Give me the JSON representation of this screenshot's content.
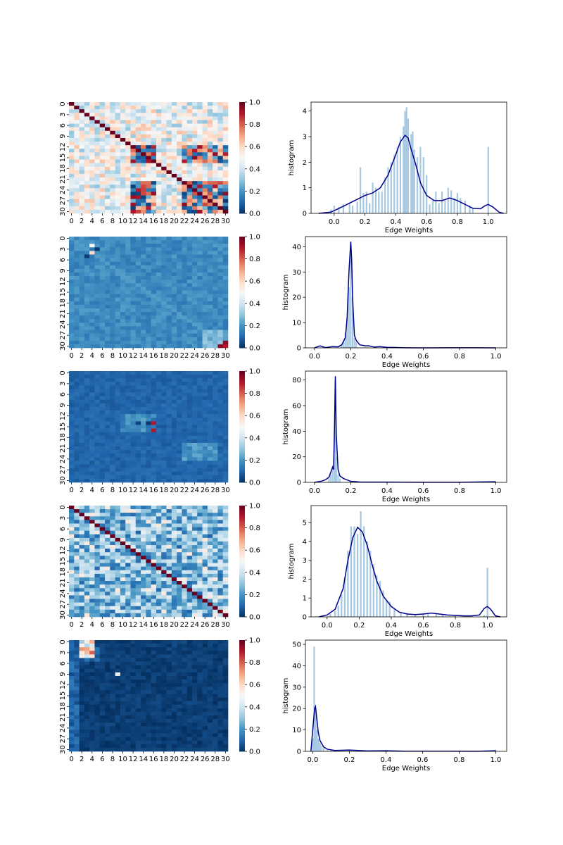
{
  "chart_data": [
    {
      "type": "heatmap",
      "panel": "heatmap-1",
      "matrix_size": 31,
      "pattern": "correlation",
      "seed": 11,
      "colormap": "RdBu_r",
      "vmin": 0.0,
      "vmax": 1.0,
      "x_ticks": [
        "0",
        "2",
        "4",
        "6",
        "8",
        "10",
        "12",
        "14",
        "16",
        "18",
        "20",
        "22",
        "24",
        "26",
        "28",
        "30"
      ],
      "y_ticks": [
        "0",
        "3",
        "6",
        "9",
        "12",
        "15",
        "18",
        "21",
        "24",
        "27",
        "30"
      ],
      "colorbar_ticks": [
        "0.0",
        "0.2",
        "0.4",
        "0.6",
        "0.8",
        "1.0"
      ]
    },
    {
      "type": "heatmap",
      "panel": "heatmap-2",
      "matrix_size": 31,
      "pattern": "uniform",
      "seed": 22,
      "colormap": "RdBu_r",
      "vmin": 0.0,
      "vmax": 1.0,
      "x_ticks": [
        "0",
        "2",
        "4",
        "6",
        "8",
        "10",
        "12",
        "14",
        "16",
        "18",
        "20",
        "22",
        "24",
        "26",
        "28",
        "30"
      ],
      "y_ticks": [
        "0",
        "3",
        "6",
        "9",
        "12",
        "15",
        "18",
        "21",
        "24",
        "27",
        "30"
      ],
      "colorbar_ticks": [
        "0.0",
        "0.2",
        "0.4",
        "0.6",
        "0.8",
        "1.0"
      ]
    },
    {
      "type": "heatmap",
      "panel": "heatmap-3",
      "matrix_size": 31,
      "pattern": "low",
      "seed": 33,
      "colormap": "RdBu_r",
      "vmin": 0.0,
      "vmax": 1.0,
      "x_ticks": [
        "0",
        "2",
        "4",
        "6",
        "8",
        "10",
        "12",
        "14",
        "16",
        "18",
        "20",
        "22",
        "24",
        "26",
        "28",
        "30"
      ],
      "y_ticks": [
        "0",
        "3",
        "6",
        "9",
        "12",
        "15",
        "18",
        "21",
        "24",
        "27",
        "30"
      ],
      "colorbar_ticks": [
        "0.0",
        "0.2",
        "0.4",
        "0.6",
        "0.8",
        "1.0"
      ]
    },
    {
      "type": "heatmap",
      "panel": "heatmap-4",
      "matrix_size": 31,
      "pattern": "diag",
      "seed": 44,
      "colormap": "RdBu_r",
      "vmin": 0.0,
      "vmax": 1.0,
      "x_ticks": [
        "0",
        "2",
        "4",
        "6",
        "8",
        "10",
        "12",
        "14",
        "16",
        "18",
        "20",
        "22",
        "24",
        "26",
        "28",
        "30"
      ],
      "y_ticks": [
        "0",
        "3",
        "6",
        "9",
        "12",
        "15",
        "18",
        "21",
        "24",
        "27",
        "30"
      ],
      "colorbar_ticks": [
        "0.0",
        "0.2",
        "0.4",
        "0.6",
        "0.8",
        "1.0"
      ]
    },
    {
      "type": "heatmap",
      "panel": "heatmap-5",
      "matrix_size": 31,
      "pattern": "dark",
      "seed": 55,
      "colormap": "RdBu_r",
      "vmin": 0.0,
      "vmax": 1.0,
      "x_ticks": [
        "0",
        "2",
        "4",
        "6",
        "8",
        "10",
        "12",
        "14",
        "16",
        "18",
        "20",
        "22",
        "24",
        "26",
        "28",
        "30"
      ],
      "y_ticks": [
        "0",
        "3",
        "6",
        "9",
        "12",
        "15",
        "18",
        "21",
        "24",
        "27",
        "30"
      ],
      "colorbar_ticks": [
        "0.0",
        "0.2",
        "0.4",
        "0.6",
        "0.8",
        "1.0"
      ]
    },
    {
      "type": "bar",
      "subtype": "histogram+kde",
      "panel": "hist-1",
      "xlabel": "Edge Weights",
      "ylabel": "histogram",
      "xlim": [
        -0.15,
        1.12
      ],
      "ylim": [
        0,
        4.35
      ],
      "x_ticks": [
        0.0,
        0.2,
        0.4,
        0.6,
        0.8,
        1.0
      ],
      "x_tick_labels": [
        "0.0",
        "0.2",
        "0.4",
        "0.6",
        "0.8",
        "1.0"
      ],
      "y_ticks": [
        0,
        1,
        2,
        3,
        4
      ],
      "y_tick_labels": [
        "0",
        "1",
        "2",
        "3",
        "4"
      ],
      "bar_width": 0.01,
      "bins": [
        [
          -0.02,
          0.15
        ],
        [
          0.0,
          0.3
        ],
        [
          0.03,
          0.25
        ],
        [
          0.06,
          0.35
        ],
        [
          0.1,
          0.4
        ],
        [
          0.12,
          0.3
        ],
        [
          0.15,
          0.45
        ],
        [
          0.17,
          1.8
        ],
        [
          0.19,
          0.8
        ],
        [
          0.21,
          0.85
        ],
        [
          0.23,
          0.4
        ],
        [
          0.25,
          1.2
        ],
        [
          0.27,
          1.0
        ],
        [
          0.29,
          0.85
        ],
        [
          0.31,
          0.85
        ],
        [
          0.33,
          1.4
        ],
        [
          0.35,
          1.8
        ],
        [
          0.37,
          2.0
        ],
        [
          0.39,
          2.3
        ],
        [
          0.41,
          2.6
        ],
        [
          0.43,
          3.0
        ],
        [
          0.45,
          3.4
        ],
        [
          0.46,
          4.0
        ],
        [
          0.47,
          4.15
        ],
        [
          0.48,
          3.7
        ],
        [
          0.5,
          3.1
        ],
        [
          0.51,
          3.2
        ],
        [
          0.52,
          2.5
        ],
        [
          0.54,
          2.2
        ],
        [
          0.56,
          2.6
        ],
        [
          0.58,
          2.2
        ],
        [
          0.6,
          1.5
        ],
        [
          0.62,
          0.35
        ],
        [
          0.64,
          0.5
        ],
        [
          0.66,
          0.85
        ],
        [
          0.68,
          0.4
        ],
        [
          0.7,
          0.85
        ],
        [
          0.72,
          0.5
        ],
        [
          0.74,
          1.0
        ],
        [
          0.76,
          0.9
        ],
        [
          0.78,
          0.6
        ],
        [
          0.8,
          0.8
        ],
        [
          0.82,
          0.6
        ],
        [
          0.85,
          0.5
        ],
        [
          0.88,
          0.3
        ],
        [
          0.9,
          0.2
        ],
        [
          1.0,
          2.6
        ]
      ],
      "kde": [
        [
          -0.1,
          0.0
        ],
        [
          -0.02,
          0.05
        ],
        [
          0.05,
          0.25
        ],
        [
          0.1,
          0.4
        ],
        [
          0.15,
          0.55
        ],
        [
          0.2,
          0.7
        ],
        [
          0.25,
          0.8
        ],
        [
          0.3,
          1.0
        ],
        [
          0.35,
          1.5
        ],
        [
          0.4,
          2.3
        ],
        [
          0.43,
          2.8
        ],
        [
          0.46,
          3.05
        ],
        [
          0.48,
          2.95
        ],
        [
          0.5,
          2.5
        ],
        [
          0.53,
          1.9
        ],
        [
          0.56,
          1.2
        ],
        [
          0.6,
          0.7
        ],
        [
          0.65,
          0.5
        ],
        [
          0.7,
          0.5
        ],
        [
          0.75,
          0.6
        ],
        [
          0.8,
          0.5
        ],
        [
          0.85,
          0.35
        ],
        [
          0.9,
          0.2
        ],
        [
          0.95,
          0.18
        ],
        [
          0.98,
          0.3
        ],
        [
          1.0,
          0.35
        ],
        [
          1.03,
          0.25
        ],
        [
          1.07,
          0.05
        ],
        [
          1.1,
          0.0
        ]
      ]
    },
    {
      "type": "bar",
      "subtype": "histogram+kde",
      "panel": "hist-2",
      "xlabel": "Edge Weights",
      "ylabel": "histogram",
      "xlim": [
        -0.05,
        1.06
      ],
      "ylim": [
        0,
        44
      ],
      "x_ticks": [
        0.0,
        0.2,
        0.4,
        0.6,
        0.8,
        1.0
      ],
      "x_tick_labels": [
        "0.0",
        "0.2",
        "0.4",
        "0.6",
        "0.8",
        "1.0"
      ],
      "y_ticks": [
        0,
        10,
        20,
        30,
        40
      ],
      "y_tick_labels": [
        "0",
        "10",
        "20",
        "30",
        "40"
      ],
      "bar_width": 0.008,
      "bins": [
        [
          0.15,
          1.5
        ],
        [
          0.16,
          2.5
        ],
        [
          0.17,
          6
        ],
        [
          0.18,
          12
        ],
        [
          0.19,
          24
        ],
        [
          0.2,
          40
        ],
        [
          0.21,
          20
        ],
        [
          0.22,
          4
        ],
        [
          0.23,
          2.5
        ]
      ],
      "kde": [
        [
          0.0,
          0.0
        ],
        [
          0.03,
          0.8
        ],
        [
          0.06,
          0.1
        ],
        [
          0.1,
          0.5
        ],
        [
          0.13,
          0.4
        ],
        [
          0.15,
          1.2
        ],
        [
          0.17,
          4
        ],
        [
          0.18,
          12
        ],
        [
          0.19,
          30
        ],
        [
          0.2,
          42
        ],
        [
          0.205,
          35
        ],
        [
          0.21,
          20
        ],
        [
          0.22,
          5
        ],
        [
          0.23,
          3
        ],
        [
          0.25,
          1.2
        ],
        [
          0.28,
          0.8
        ],
        [
          0.3,
          0.8
        ],
        [
          0.33,
          0.3
        ],
        [
          0.36,
          0.5
        ],
        [
          0.4,
          0.2
        ],
        [
          0.45,
          0.15
        ],
        [
          0.5,
          0.05
        ],
        [
          0.6,
          0.0
        ],
        [
          0.75,
          0.05
        ],
        [
          0.9,
          0.05
        ],
        [
          1.0,
          0.0
        ]
      ]
    },
    {
      "type": "bar",
      "subtype": "histogram+kde",
      "panel": "hist-3",
      "xlabel": "Edge Weights",
      "ylabel": "histogram",
      "xlim": [
        -0.05,
        1.06
      ],
      "ylim": [
        0,
        87
      ],
      "x_ticks": [
        0.0,
        0.2,
        0.4,
        0.6,
        0.8,
        1.0
      ],
      "x_tick_labels": [
        "0.0",
        "0.2",
        "0.4",
        "0.6",
        "0.8",
        "1.0"
      ],
      "y_ticks": [
        0,
        20,
        40,
        60,
        80
      ],
      "y_tick_labels": [
        "0",
        "20",
        "40",
        "60",
        "80"
      ],
      "bar_width": 0.008,
      "bins": [
        [
          0.08,
          3
        ],
        [
          0.09,
          6
        ],
        [
          0.1,
          12
        ],
        [
          0.11,
          40
        ],
        [
          0.115,
          80
        ],
        [
          0.12,
          20
        ],
        [
          0.13,
          6
        ],
        [
          0.14,
          3
        ]
      ],
      "kde": [
        [
          0.0,
          0.0
        ],
        [
          0.04,
          1.0
        ],
        [
          0.06,
          2.0
        ],
        [
          0.08,
          4.0
        ],
        [
          0.09,
          8.0
        ],
        [
          0.1,
          12.0
        ],
        [
          0.105,
          10.0
        ],
        [
          0.11,
          40.0
        ],
        [
          0.115,
          83.0
        ],
        [
          0.12,
          38.0
        ],
        [
          0.13,
          10.0
        ],
        [
          0.14,
          5.0
        ],
        [
          0.16,
          3.0
        ],
        [
          0.2,
          0.8
        ],
        [
          0.25,
          0.3
        ],
        [
          0.4,
          0.2
        ],
        [
          0.6,
          0.1
        ],
        [
          0.8,
          0.05
        ],
        [
          1.0,
          0.5
        ]
      ]
    },
    {
      "type": "bar",
      "subtype": "histogram+kde",
      "panel": "hist-4",
      "xlabel": "Edge Weights",
      "ylabel": "histogram",
      "xlim": [
        -0.1,
        1.12
      ],
      "ylim": [
        0,
        5.9
      ],
      "x_ticks": [
        0.0,
        0.2,
        0.4,
        0.6,
        0.8,
        1.0
      ],
      "x_tick_labels": [
        "0.0",
        "0.2",
        "0.4",
        "0.6",
        "0.8",
        "1.0"
      ],
      "y_ticks": [
        0,
        1,
        2,
        3,
        4,
        5
      ],
      "y_tick_labels": [
        "0",
        "1",
        "2",
        "3",
        "4",
        "5"
      ],
      "bar_width": 0.01,
      "bins": [
        [
          0.02,
          0.15
        ],
        [
          0.05,
          0.3
        ],
        [
          0.07,
          0.6
        ],
        [
          0.09,
          1.2
        ],
        [
          0.11,
          2.1
        ],
        [
          0.13,
          3.5
        ],
        [
          0.15,
          4.8
        ],
        [
          0.17,
          4.8
        ],
        [
          0.19,
          4.4
        ],
        [
          0.21,
          5.6
        ],
        [
          0.23,
          4.8
        ],
        [
          0.25,
          4.0
        ],
        [
          0.27,
          3.5
        ],
        [
          0.29,
          2.8
        ],
        [
          0.31,
          2.2
        ],
        [
          0.33,
          1.9
        ],
        [
          0.35,
          1.4
        ],
        [
          0.37,
          0.9
        ],
        [
          0.39,
          0.8
        ],
        [
          0.42,
          0.4
        ],
        [
          0.46,
          0.25
        ],
        [
          0.5,
          0.2
        ],
        [
          0.55,
          0.15
        ],
        [
          0.6,
          0.2
        ],
        [
          0.63,
          0.15
        ],
        [
          0.68,
          0.15
        ],
        [
          0.72,
          0.1
        ],
        [
          0.8,
          0.1
        ],
        [
          0.98,
          0.1
        ],
        [
          1.0,
          2.6
        ]
      ],
      "kde": [
        [
          -0.05,
          0.0
        ],
        [
          0.0,
          0.1
        ],
        [
          0.05,
          0.4
        ],
        [
          0.1,
          1.5
        ],
        [
          0.13,
          3.0
        ],
        [
          0.16,
          4.2
        ],
        [
          0.19,
          4.75
        ],
        [
          0.22,
          4.5
        ],
        [
          0.25,
          3.8
        ],
        [
          0.28,
          2.8
        ],
        [
          0.31,
          1.9
        ],
        [
          0.35,
          1.1
        ],
        [
          0.4,
          0.55
        ],
        [
          0.45,
          0.25
        ],
        [
          0.5,
          0.15
        ],
        [
          0.55,
          0.12
        ],
        [
          0.6,
          0.15
        ],
        [
          0.65,
          0.2
        ],
        [
          0.7,
          0.15
        ],
        [
          0.75,
          0.1
        ],
        [
          0.8,
          0.08
        ],
        [
          0.85,
          0.05
        ],
        [
          0.9,
          0.05
        ],
        [
          0.95,
          0.1
        ],
        [
          0.98,
          0.45
        ],
        [
          1.0,
          0.55
        ],
        [
          1.02,
          0.4
        ],
        [
          1.05,
          0.05
        ],
        [
          1.08,
          0.0
        ]
      ]
    },
    {
      "type": "bar",
      "subtype": "histogram+kde",
      "panel": "hist-5",
      "xlabel": "Edge Weights",
      "ylabel": "histogram",
      "xlim": [
        -0.04,
        1.06
      ],
      "ylim": [
        0,
        52
      ],
      "x_ticks": [
        0.0,
        0.2,
        0.4,
        0.6,
        0.8,
        1.0
      ],
      "x_tick_labels": [
        "0.0",
        "0.2",
        "0.4",
        "0.6",
        "0.8",
        "1.0"
      ],
      "y_ticks": [
        0,
        10,
        20,
        30,
        40,
        50
      ],
      "y_tick_labels": [
        "0",
        "10",
        "20",
        "30",
        "40",
        "50"
      ],
      "bar_width": 0.008,
      "bins": [
        [
          0.0,
          6
        ],
        [
          0.008,
          49
        ],
        [
          0.016,
          20
        ],
        [
          0.024,
          10
        ],
        [
          0.032,
          6
        ],
        [
          0.04,
          4
        ],
        [
          0.05,
          2.5
        ],
        [
          0.06,
          1.5
        ],
        [
          0.08,
          1.0
        ],
        [
          0.1,
          0.5
        ],
        [
          0.2,
          0.5
        ],
        [
          0.38,
          0.4
        ],
        [
          0.7,
          0.2
        ],
        [
          1.0,
          0.8
        ]
      ],
      "kde": [
        [
          -0.01,
          0.0
        ],
        [
          0.0,
          10.0
        ],
        [
          0.01,
          20.0
        ],
        [
          0.015,
          21.0
        ],
        [
          0.02,
          17.0
        ],
        [
          0.03,
          9.0
        ],
        [
          0.04,
          5.0
        ],
        [
          0.06,
          2.0
        ],
        [
          0.08,
          1.0
        ],
        [
          0.12,
          0.4
        ],
        [
          0.2,
          0.6
        ],
        [
          0.3,
          0.2
        ],
        [
          0.4,
          0.3
        ],
        [
          0.5,
          0.1
        ],
        [
          0.7,
          0.1
        ],
        [
          0.9,
          0.05
        ],
        [
          1.0,
          0.3
        ]
      ]
    }
  ]
}
